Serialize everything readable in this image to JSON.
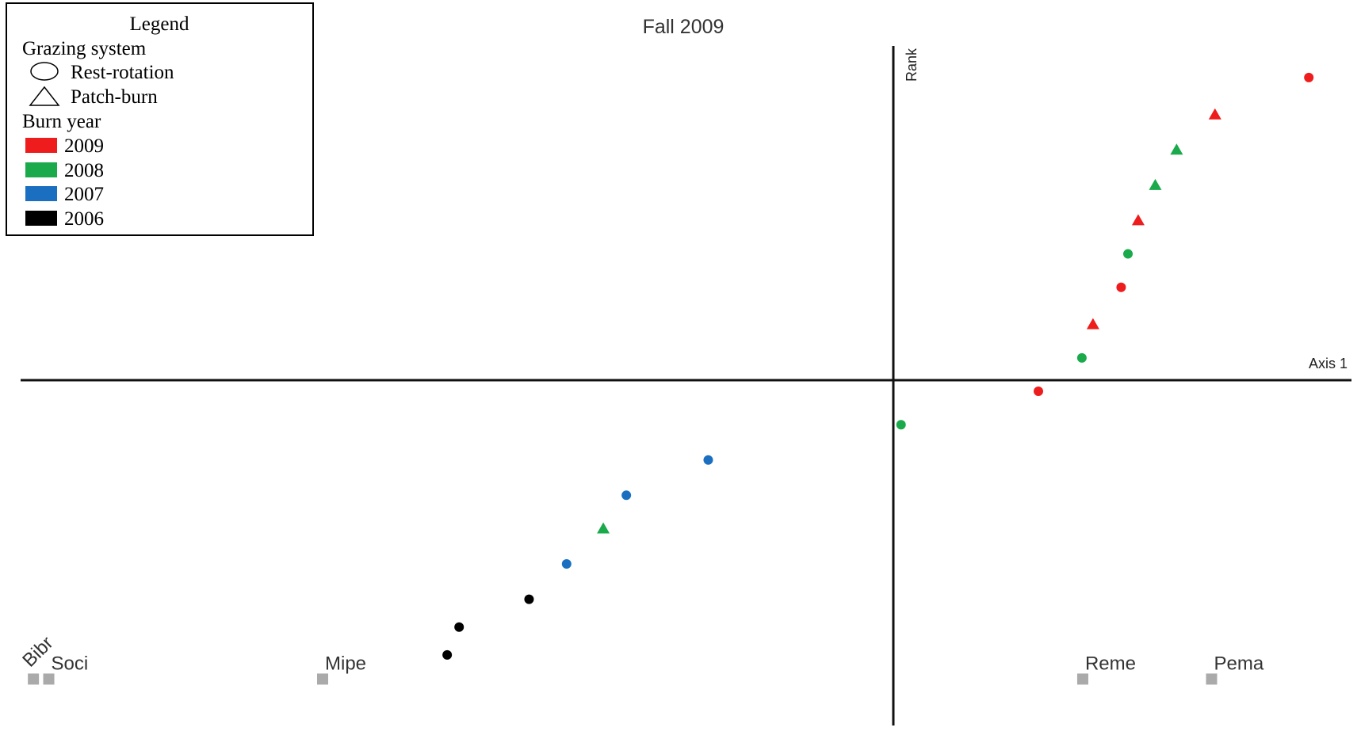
{
  "chart_data": {
    "type": "scatter",
    "title": "Fall 2009",
    "xlabel": "Axis 1",
    "ylabel": "Rank",
    "xlim": [
      -1.02,
      0.54
    ],
    "ylim": [
      -1.0,
      0.83
    ],
    "grid": false,
    "legend": {
      "title": "Legend",
      "shape_heading": "Grazing system",
      "shapes": [
        {
          "label": "Rest-rotation",
          "shape": "circle"
        },
        {
          "label": "Patch-burn",
          "shape": "triangle"
        }
      ],
      "color_heading": "Burn year",
      "colors": [
        {
          "label": "2009",
          "color": "#ee1c1c"
        },
        {
          "label": "2008",
          "color": "#1aaa4b"
        },
        {
          "label": "2007",
          "color": "#1a6fc0"
        },
        {
          "label": "2006",
          "color": "#000000"
        }
      ],
      "placement": "top-left"
    },
    "points": [
      {
        "x": 0.49,
        "y": 0.745,
        "shape": "circle",
        "color": "#ee1c1c"
      },
      {
        "x": 0.38,
        "y": 0.645,
        "shape": "triangle",
        "color": "#ee1c1c"
      },
      {
        "x": 0.335,
        "y": 0.55,
        "shape": "triangle",
        "color": "#1aaa4b"
      },
      {
        "x": 0.31,
        "y": 0.455,
        "shape": "triangle",
        "color": "#1aaa4b"
      },
      {
        "x": 0.29,
        "y": 0.36,
        "shape": "triangle",
        "color": "#ee1c1c"
      },
      {
        "x": 0.278,
        "y": 0.27,
        "shape": "circle",
        "color": "#1aaa4b"
      },
      {
        "x": 0.27,
        "y": 0.18,
        "shape": "circle",
        "color": "#ee1c1c"
      },
      {
        "x": 0.237,
        "y": 0.08,
        "shape": "triangle",
        "color": "#ee1c1c"
      },
      {
        "x": 0.224,
        "y": -0.01,
        "shape": "circle",
        "color": "#1aaa4b"
      },
      {
        "x": 0.173,
        "y": -0.1,
        "shape": "circle",
        "color": "#ee1c1c"
      },
      {
        "x": 0.012,
        "y": -0.19,
        "shape": "circle",
        "color": "#1aaa4b"
      },
      {
        "x": -0.214,
        "y": -0.285,
        "shape": "circle",
        "color": "#1a6fc0"
      },
      {
        "x": -0.31,
        "y": -0.38,
        "shape": "circle",
        "color": "#1a6fc0"
      },
      {
        "x": -0.337,
        "y": -0.47,
        "shape": "triangle",
        "color": "#1aaa4b"
      },
      {
        "x": -0.38,
        "y": -0.565,
        "shape": "circle",
        "color": "#1a6fc0"
      },
      {
        "x": -0.424,
        "y": -0.66,
        "shape": "circle",
        "color": "#000000"
      },
      {
        "x": -0.506,
        "y": -0.735,
        "shape": "circle",
        "color": "#000000"
      },
      {
        "x": -0.52,
        "y": -0.81,
        "shape": "circle",
        "color": "#000000"
      }
    ],
    "species": [
      {
        "label": "Bibr",
        "x": -1.005,
        "y": -0.875
      },
      {
        "label": "Soci",
        "x": -0.987,
        "y": -0.875
      },
      {
        "label": "Mipe",
        "x": -0.666,
        "y": -0.875
      },
      {
        "label": "Reme",
        "x": 0.225,
        "y": -0.875
      },
      {
        "label": "Pema",
        "x": 0.376,
        "y": -0.875
      }
    ]
  }
}
